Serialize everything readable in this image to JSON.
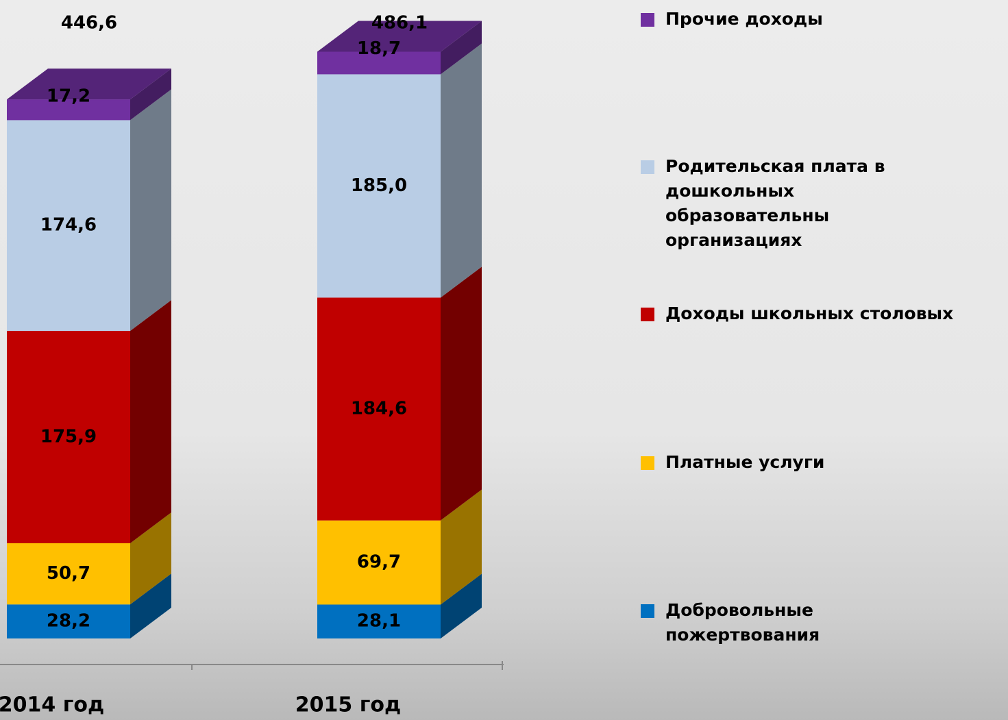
{
  "chart_data": {
    "type": "stacked-bar-3d",
    "categories": [
      "2014 год",
      "2015 год"
    ],
    "series": [
      {
        "name": "Добровольные пожертвования",
        "color": "#0070c0",
        "values": [
          28.2,
          28.1
        ],
        "value_labels": [
          "28,2",
          "28,1"
        ]
      },
      {
        "name": "Платные услуги",
        "color": "#ffc000",
        "values": [
          50.7,
          69.7
        ],
        "value_labels": [
          "50,7",
          "69,7"
        ]
      },
      {
        "name": "Доходы школьных столовых",
        "color": "#c00000",
        "values": [
          175.9,
          184.6
        ],
        "value_labels": [
          "175,9",
          "184,6"
        ]
      },
      {
        "name": "Родительская плата в дошкольных образовательны организациях",
        "color": "#b9cde5",
        "values": [
          174.6,
          185.0
        ],
        "value_labels": [
          "174,6",
          "185,0"
        ]
      },
      {
        "name": "Прочие доходы",
        "color": "#7030a0",
        "values": [
          17.2,
          18.7
        ],
        "value_labels": [
          "17,2",
          "18,7"
        ]
      }
    ],
    "totals": {
      "values": [
        446.6,
        486.1
      ],
      "value_labels": [
        "446,6",
        "486,1"
      ]
    }
  }
}
